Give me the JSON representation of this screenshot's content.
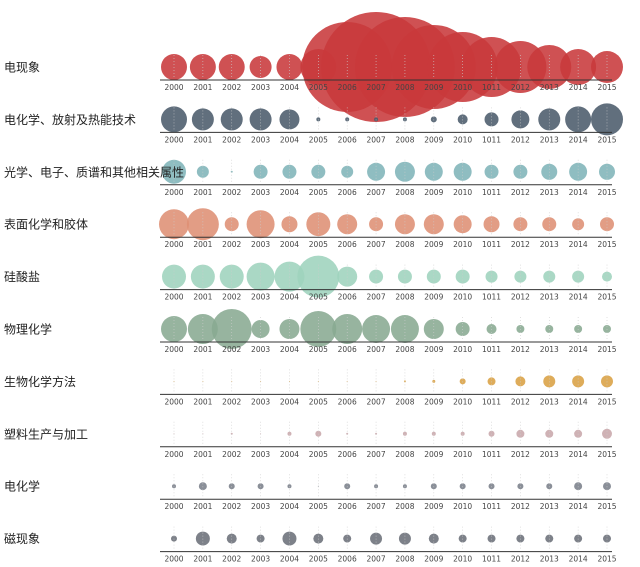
{
  "chart_data": {
    "type": "bubble",
    "categories": [
      "2000",
      "2001",
      "2002",
      "2003",
      "2004",
      "2005",
      "2006",
      "2007",
      "2008",
      "2009",
      "2010",
      "1011",
      "2012",
      "2013",
      "2014",
      "2015"
    ],
    "series": [
      {
        "name": "电现象",
        "color": "#c8393b",
        "values": [
          169,
          169,
          169,
          121,
          169,
          324,
          2025,
          3025,
          2500,
          1764,
          1225,
          900,
          676,
          484,
          324,
          256
        ]
      },
      {
        "name": "电化学、放射及热能技术",
        "color": "#4b5b6b",
        "values": [
          169,
          121,
          121,
          121,
          100,
          4,
          4,
          4,
          4,
          9,
          25,
          49,
          81,
          121,
          169,
          256
        ]
      },
      {
        "name": "光学、电子、质谱和其他相关属性",
        "color": "#7fb4b8",
        "values": [
          144,
          36,
          1,
          49,
          49,
          49,
          36,
          81,
          100,
          81,
          81,
          49,
          49,
          64,
          81,
          64
        ]
      },
      {
        "name": "表面化学和胶体",
        "color": "#de8f74",
        "values": [
          225,
          256,
          49,
          196,
          64,
          144,
          100,
          49,
          100,
          100,
          81,
          64,
          49,
          49,
          36,
          49
        ]
      },
      {
        "name": "硅酸盐",
        "color": "#9ed3bd",
        "values": [
          144,
          144,
          144,
          196,
          225,
          441,
          100,
          49,
          49,
          49,
          49,
          36,
          36,
          36,
          36,
          25
        ]
      },
      {
        "name": "物理化学",
        "color": "#89aa92",
        "values": [
          169,
          225,
          400,
          81,
          100,
          324,
          225,
          196,
          196,
          100,
          49,
          25,
          16,
          16,
          16,
          16
        ]
      },
      {
        "name": "生物化学方法",
        "color": "#d9a043",
        "values": [
          0.25,
          0.25,
          0.25,
          0.25,
          0.25,
          0.25,
          0.25,
          0.25,
          1,
          2.25,
          9,
          16,
          25,
          36,
          36,
          36
        ]
      },
      {
        "name": "塑料生产与加工",
        "color": "#c8a7ab",
        "values": [
          0.25,
          0.25,
          1,
          0.25,
          4,
          9,
          1,
          1,
          4,
          4,
          4,
          9,
          16,
          16,
          16,
          25
        ]
      },
      {
        "name": "电化学",
        "color": "#7a7f8a",
        "values": [
          4,
          16,
          9,
          9,
          4,
          0.25,
          9,
          4,
          4,
          9,
          9,
          9,
          9,
          9,
          16,
          16
        ]
      },
      {
        "name": "磁现象",
        "color": "#6b7079",
        "values": [
          9,
          49,
          25,
          16,
          49,
          25,
          16,
          36,
          36,
          25,
          16,
          16,
          16,
          16,
          16,
          16
        ]
      }
    ]
  }
}
